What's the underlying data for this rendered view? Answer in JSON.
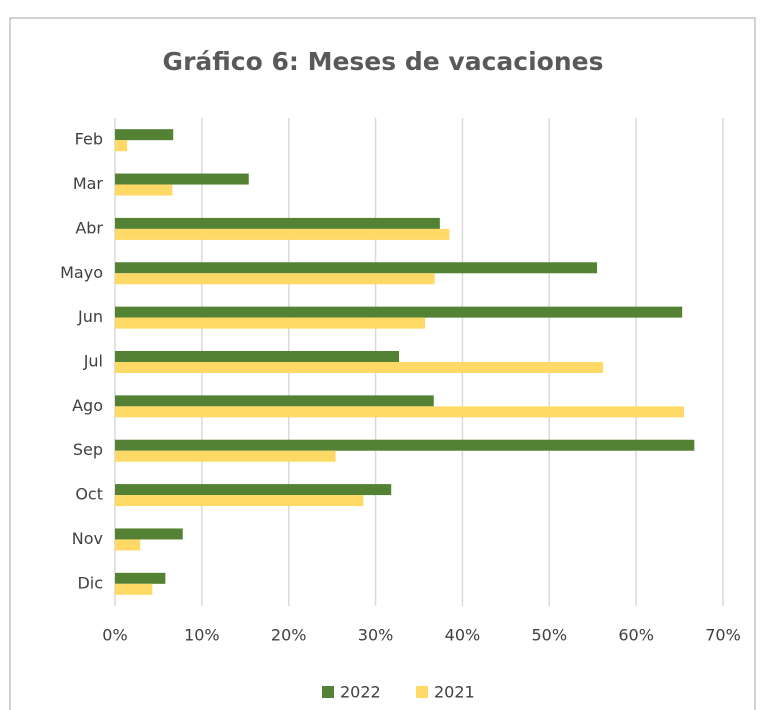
{
  "chart_data": {
    "type": "bar",
    "orientation": "horizontal",
    "title": "Gráfico 6: Meses de vacaciones",
    "categories": [
      "Feb",
      "Mar",
      "Abr",
      "Mayo",
      "Jun",
      "Jul",
      "Ago",
      "Sep",
      "Oct",
      "Nov",
      "Dic"
    ],
    "series": [
      {
        "name": "2022",
        "color": "#548235",
        "values": [
          6.7,
          15.4,
          37.4,
          55.5,
          65.3,
          32.7,
          36.7,
          66.7,
          31.8,
          7.8,
          5.8
        ]
      },
      {
        "name": "2021",
        "color": "#ffd966",
        "values": [
          1.4,
          6.6,
          38.5,
          36.8,
          35.7,
          56.2,
          65.5,
          25.4,
          28.6,
          2.9,
          4.3
        ]
      }
    ],
    "xlim": [
      0,
      70
    ],
    "xticks": [
      {
        "value": 0,
        "label": "0%"
      },
      {
        "value": 10,
        "label": "10%"
      },
      {
        "value": 20,
        "label": "20%"
      },
      {
        "value": 30,
        "label": "30%"
      },
      {
        "value": 40,
        "label": "40%"
      },
      {
        "value": 50,
        "label": "50%"
      },
      {
        "value": 60,
        "label": "60%"
      },
      {
        "value": 70,
        "label": "70%"
      }
    ],
    "grid": true,
    "legend": "bottom"
  }
}
